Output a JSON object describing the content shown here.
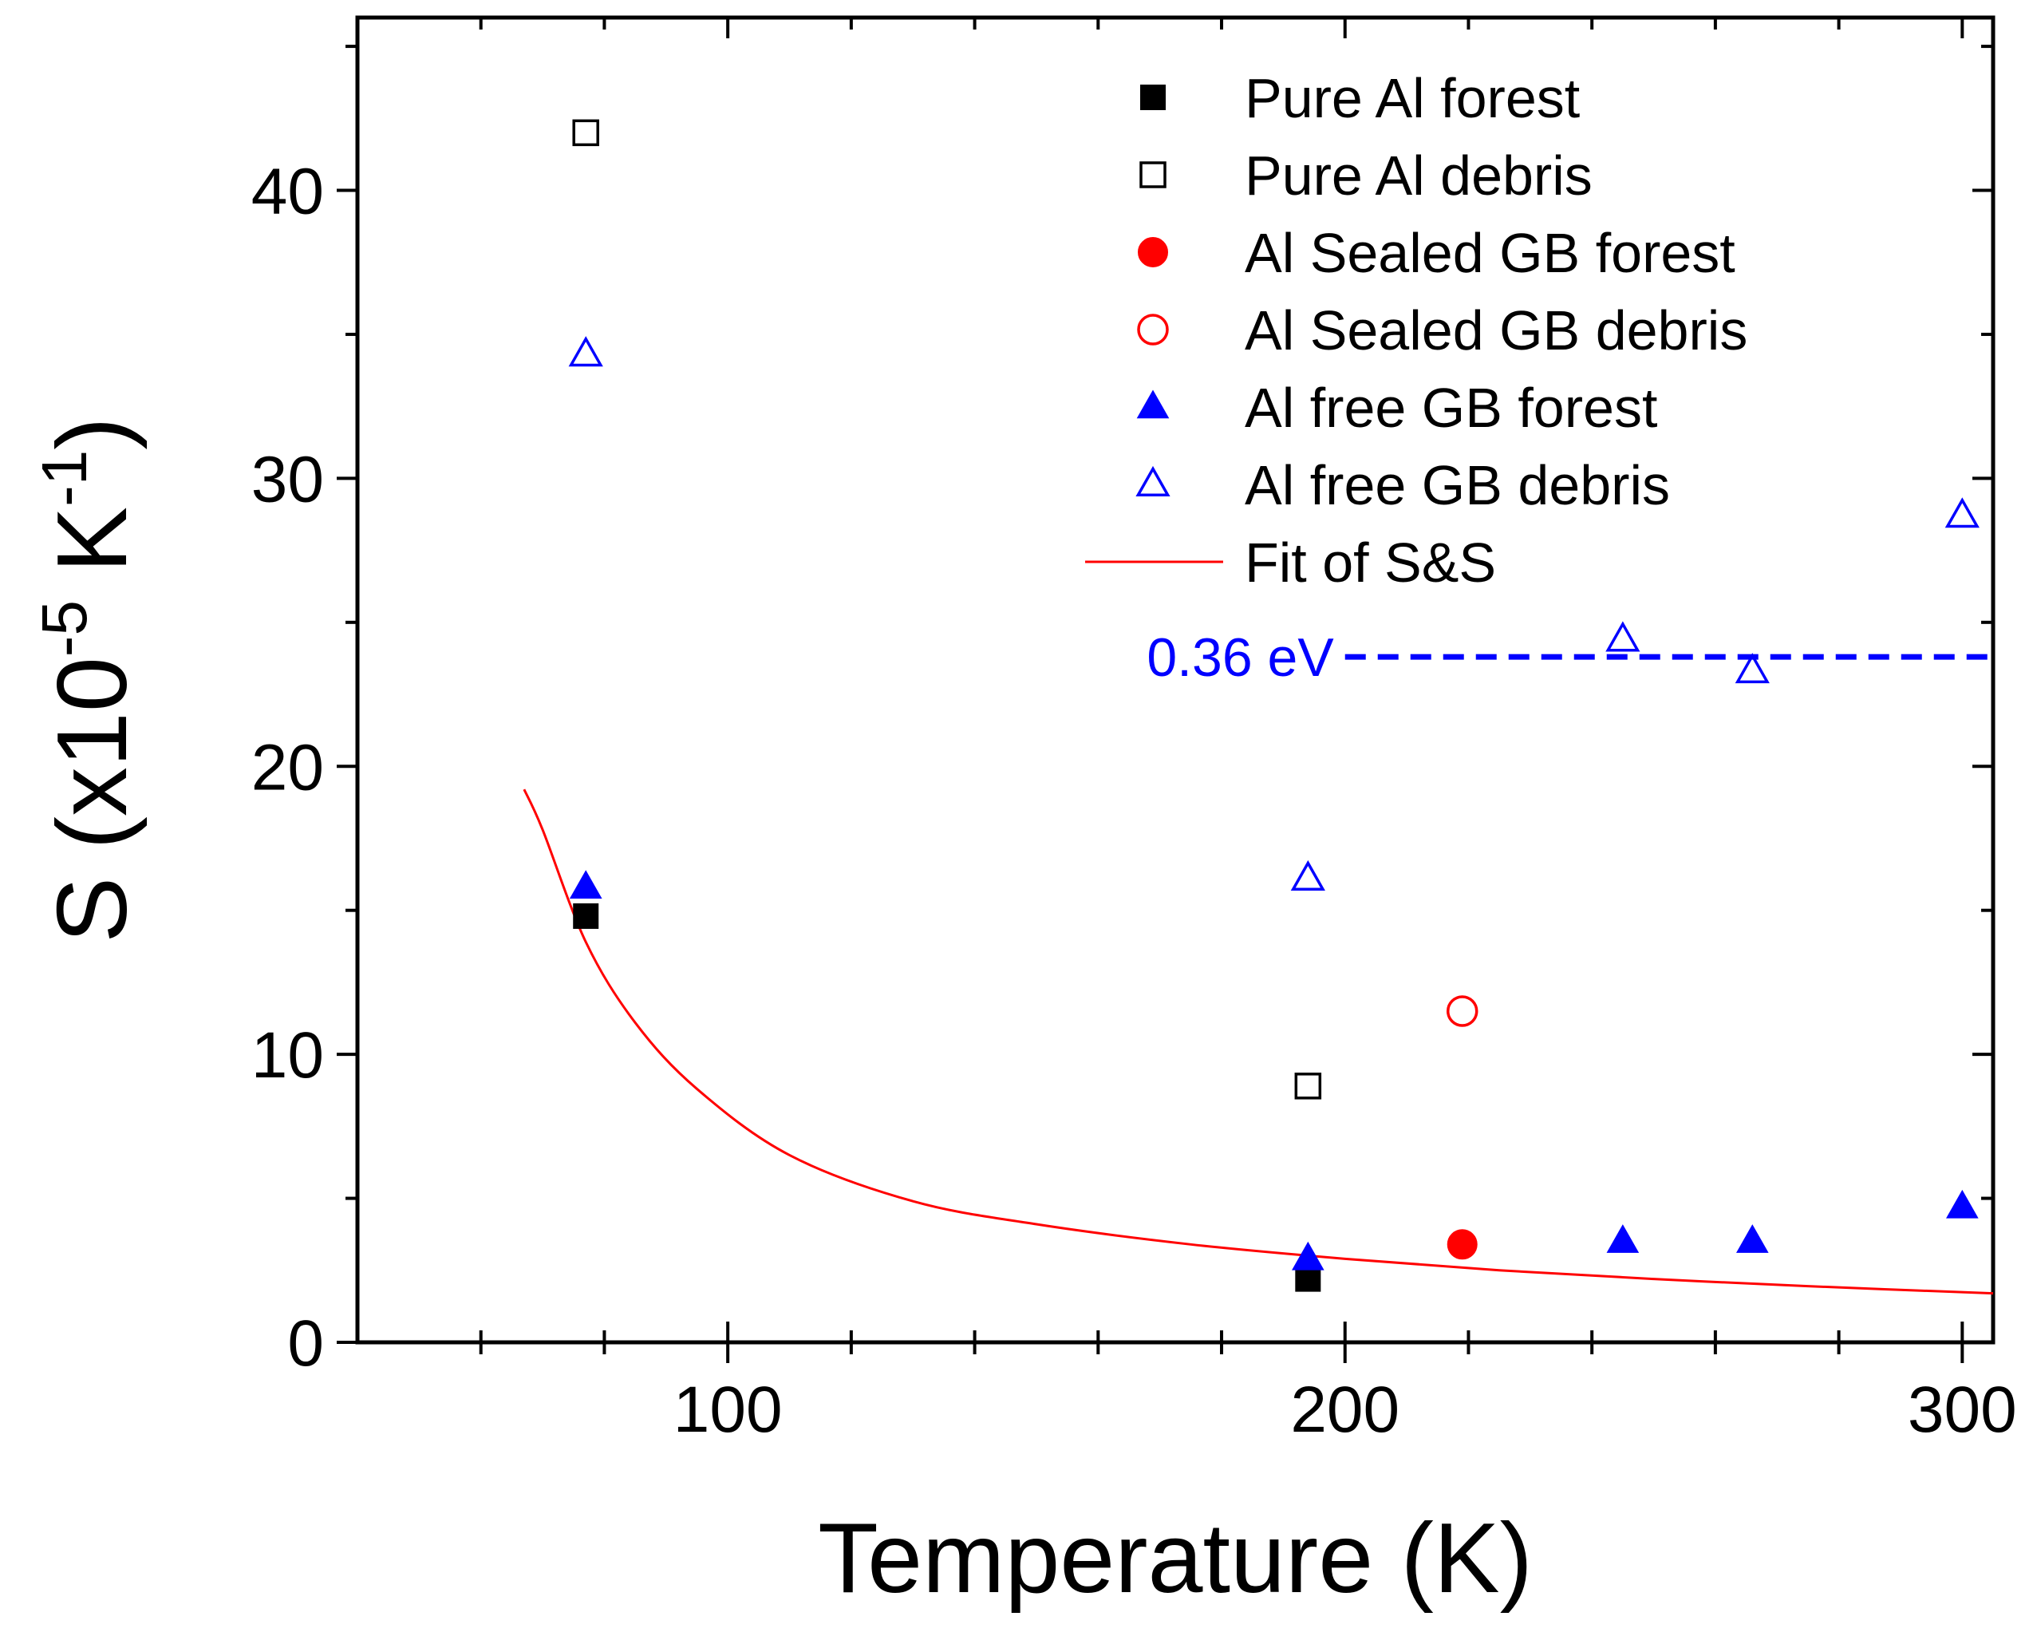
{
  "chart_data": {
    "type": "scatter",
    "title": "",
    "xlabel": "Temperature (K)",
    "ylabel": "S (x10^-5 K^-1)",
    "ylabel_parts": {
      "main": "S  (x10",
      "exp1": "-5",
      "mid": " K",
      "exp2": "-1",
      "end": ")"
    },
    "xlim": [
      40,
      305
    ],
    "ylim": [
      0,
      46
    ],
    "xticks": [
      100,
      200,
      300
    ],
    "xtick_labels": [
      "100",
      "200",
      "300"
    ],
    "yticks": [
      0,
      10,
      20,
      30,
      40
    ],
    "ytick_labels": [
      "0",
      "10",
      "20",
      "30",
      "40"
    ],
    "series": [
      {
        "name": "Pure Al forest",
        "marker": "square",
        "filled": true,
        "color": "#000000",
        "points": [
          [
            77,
            14.8
          ],
          [
            194,
            2.2
          ]
        ]
      },
      {
        "name": "Pure Al debris",
        "marker": "square",
        "filled": false,
        "color": "#000000",
        "points": [
          [
            77,
            42.0
          ],
          [
            194,
            8.9
          ]
        ]
      },
      {
        "name": "Al Sealed GB forest",
        "marker": "circle",
        "filled": true,
        "color": "#ff0000",
        "points": [
          [
            219,
            3.4
          ]
        ]
      },
      {
        "name": "Al Sealed GB debris",
        "marker": "circle",
        "filled": false,
        "color": "#ff0000",
        "points": [
          [
            219,
            11.5
          ]
        ]
      },
      {
        "name": "Al free GB forest",
        "marker": "triangle",
        "filled": true,
        "color": "#0000ff",
        "points": [
          [
            77,
            15.8
          ],
          [
            194,
            2.9
          ],
          [
            245,
            3.5
          ],
          [
            266,
            3.5
          ],
          [
            300,
            4.7
          ]
        ]
      },
      {
        "name": "Al free GB debris",
        "marker": "triangle",
        "filled": false,
        "color": "#0000ff",
        "points": [
          [
            77,
            34.3
          ],
          [
            194,
            16.1
          ],
          [
            245,
            24.4
          ],
          [
            266,
            23.3
          ],
          [
            300,
            28.7
          ]
        ]
      }
    ],
    "fit": {
      "name": "Fit of S&S",
      "color": "#ff0000",
      "x_range": [
        67,
        305
      ],
      "x": [
        67,
        70,
        77,
        85,
        95,
        110,
        130,
        150,
        175,
        200,
        225,
        250,
        275,
        305
      ],
      "y": [
        19.2,
        17.8,
        13.9,
        11.1,
        8.8,
        6.5,
        4.9,
        4.1,
        3.4,
        2.9,
        2.5,
        2.2,
        1.95,
        1.7
      ]
    },
    "reference_line": {
      "label": "0.36 eV",
      "y": 23.8,
      "x_range": [
        200,
        305
      ],
      "color": "#0000ff",
      "style": "dashed"
    },
    "legend_position": "top-right"
  }
}
